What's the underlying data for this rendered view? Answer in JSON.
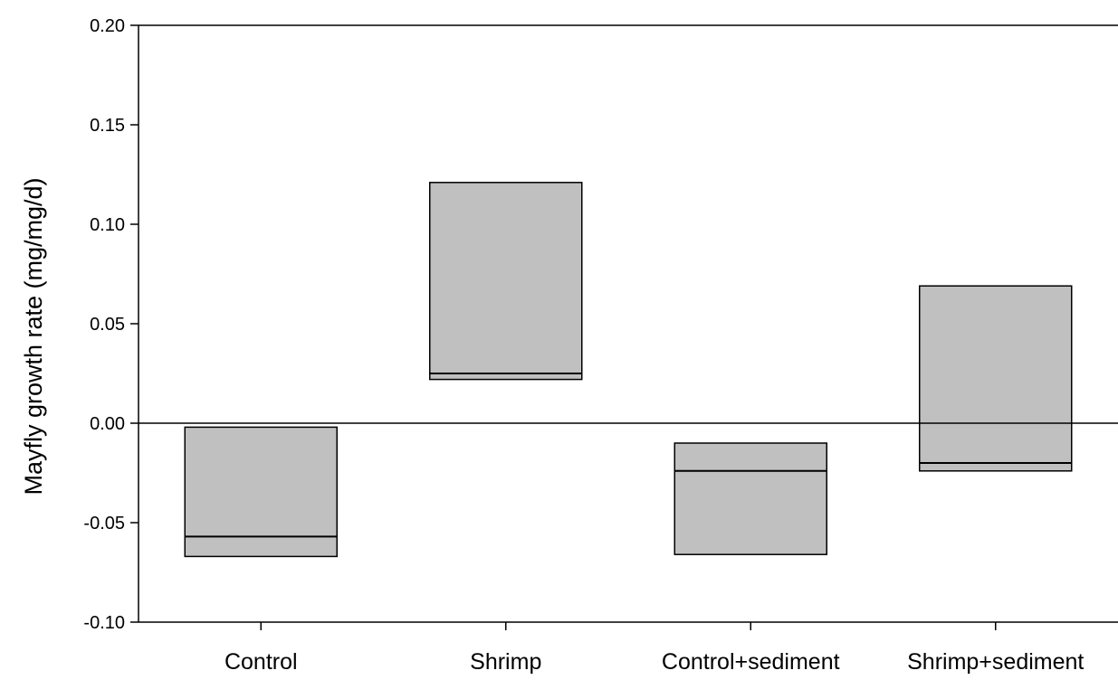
{
  "chart_data": {
    "type": "box",
    "categories": [
      "Control",
      "Shrimp",
      "Control+sediment",
      "Shrimp+sediment"
    ],
    "boxes": [
      {
        "category": "Control",
        "low": -0.067,
        "median": -0.057,
        "high": -0.002
      },
      {
        "category": "Shrimp",
        "low": 0.022,
        "median": 0.025,
        "high": 0.121
      },
      {
        "category": "Control+sediment",
        "low": -0.066,
        "median": -0.024,
        "high": -0.01
      },
      {
        "category": "Shrimp+sediment",
        "low": -0.024,
        "median": -0.02,
        "high": 0.069
      }
    ],
    "title": "",
    "xlabel": "",
    "ylabel": "Mayfly growth rate (mg/mg/d)",
    "ylim": [
      -0.1,
      0.2
    ],
    "yticks": [
      -0.1,
      -0.05,
      0.0,
      0.05,
      0.1,
      0.15,
      0.2
    ],
    "ytick_labels": [
      "-0.10",
      "-0.05",
      "0.00",
      "0.05",
      "0.10",
      "0.15",
      "0.20"
    ],
    "reference_line": 0.0,
    "grid": false,
    "box_fill": "#c0c0c0",
    "line_color": "#000000"
  }
}
